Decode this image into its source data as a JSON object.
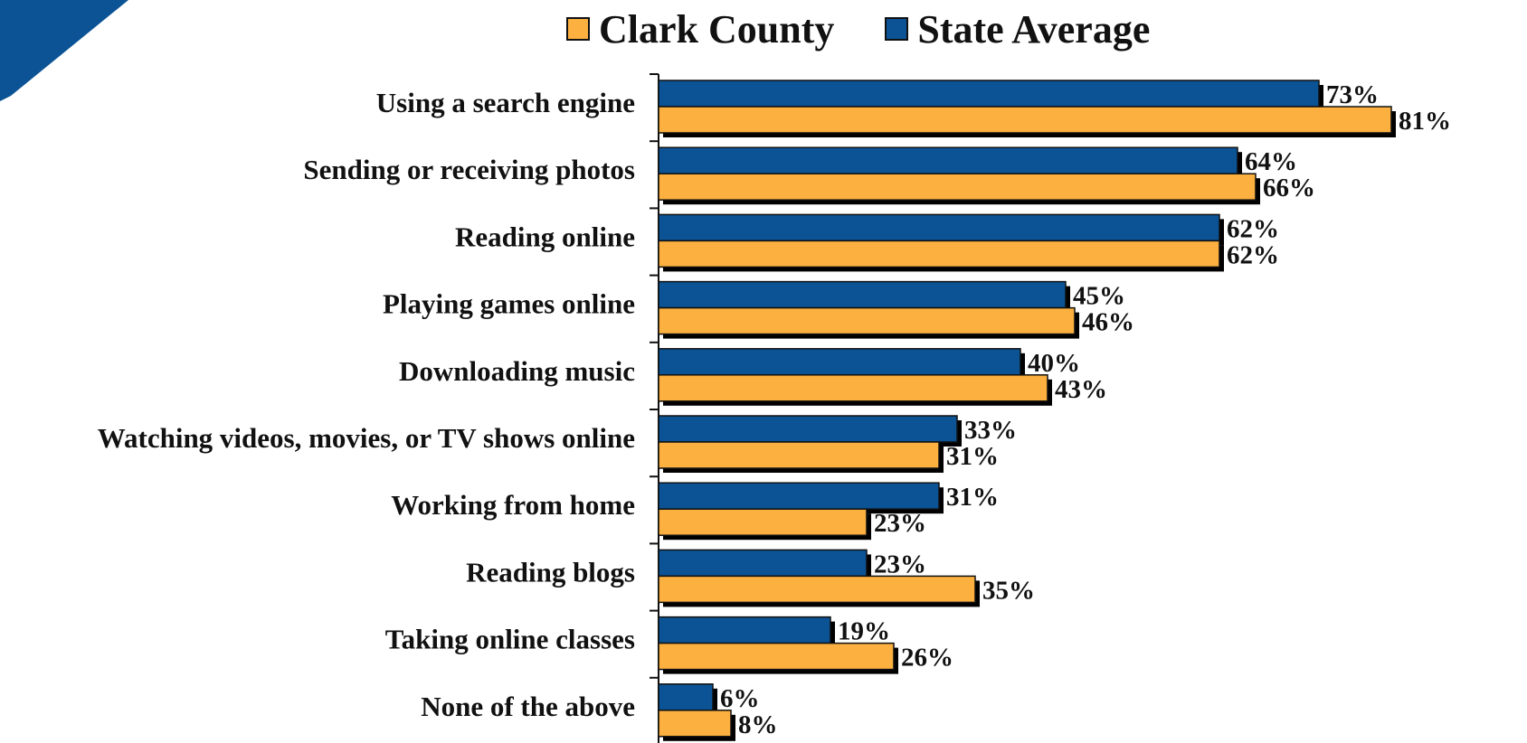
{
  "chart_data": {
    "type": "bar",
    "orientation": "horizontal",
    "categories": [
      "Using a search engine",
      "Sending or receiving photos",
      "Reading online",
      "Playing games online",
      "Downloading music",
      "Watching videos, movies, or TV shows online",
      "Working from home",
      "Reading blogs",
      "Taking online classes",
      "None of the above"
    ],
    "series": [
      {
        "name": "State Average",
        "color": "#0b5394",
        "values": [
          73,
          64,
          62,
          45,
          40,
          33,
          31,
          23,
          19,
          6
        ],
        "labels": [
          "73%",
          "64%",
          "62%",
          "45%",
          "40%",
          "33%",
          "31%",
          "23%",
          "19%",
          "6%"
        ]
      },
      {
        "name": "Clark County",
        "color": "#fbb040",
        "values": [
          81,
          66,
          62,
          46,
          43,
          31,
          23,
          35,
          26,
          8
        ],
        "labels": [
          "81%",
          "66%",
          "62%",
          "46%",
          "43%",
          "31%",
          "23%",
          "35%",
          "26%",
          "8%"
        ]
      }
    ],
    "legend_order": [
      "Clark County",
      "State Average"
    ],
    "legend_position": "top",
    "xlim": [
      0,
      100
    ],
    "grid": false,
    "title": "",
    "xlabel": "",
    "ylabel": ""
  },
  "decoration": {
    "corner_color": "#0b5394"
  }
}
